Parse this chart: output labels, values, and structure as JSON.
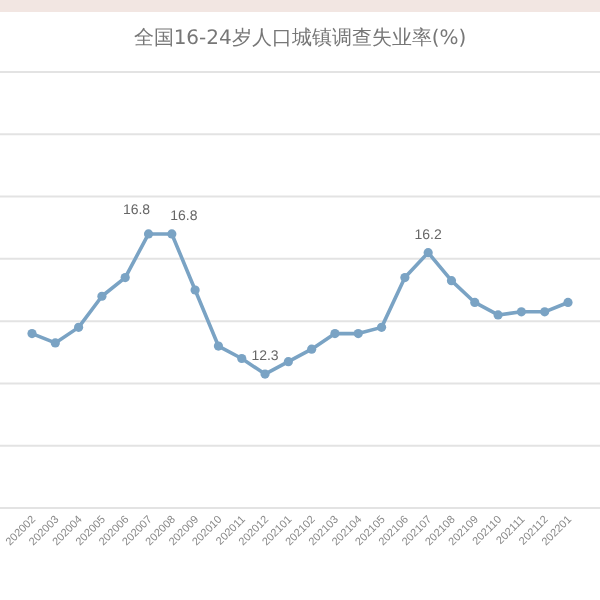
{
  "chart_data": {
    "type": "line",
    "title": "全国16-24岁人口城镇调查失业率(%)",
    "categories": [
      "202002",
      "202003",
      "202004",
      "202005",
      "202006",
      "202007",
      "202008",
      "202009",
      "202010",
      "202011",
      "202012",
      "202101",
      "202102",
      "202103",
      "202104",
      "202105",
      "202106",
      "202107",
      "202108",
      "202109",
      "202110",
      "202111",
      "202112",
      "202201"
    ],
    "series": [
      {
        "color": "#7aa3c4",
        "values": [
          13.6,
          13.3,
          13.8,
          14.8,
          15.4,
          16.8,
          16.8,
          15.0,
          13.2,
          12.8,
          12.3,
          12.7,
          13.1,
          13.6,
          13.6,
          13.8,
          15.4,
          16.2,
          15.3,
          14.6,
          14.2,
          14.3,
          14.3,
          14.6
        ],
        "value_labels": [
          null,
          null,
          null,
          null,
          null,
          "16.8",
          "16.8",
          null,
          null,
          null,
          "12.3",
          null,
          null,
          null,
          null,
          null,
          null,
          "16.2",
          null,
          null,
          null,
          null,
          null,
          null
        ]
      }
    ],
    "ylim": [
      8,
      22
    ],
    "yticks": [
      {
        "value": 8,
        "label": null
      },
      {
        "value": 10,
        "label": null
      },
      {
        "value": 12,
        "label": null
      },
      {
        "value": 14,
        "label": null
      },
      {
        "value": 16,
        "label": null
      },
      {
        "value": 18,
        "label": null
      },
      {
        "value": 20,
        "label": null
      },
      {
        "value": 22,
        "label": null
      }
    ],
    "grid": "y",
    "marker": "circle",
    "tick_labels": "x"
  }
}
